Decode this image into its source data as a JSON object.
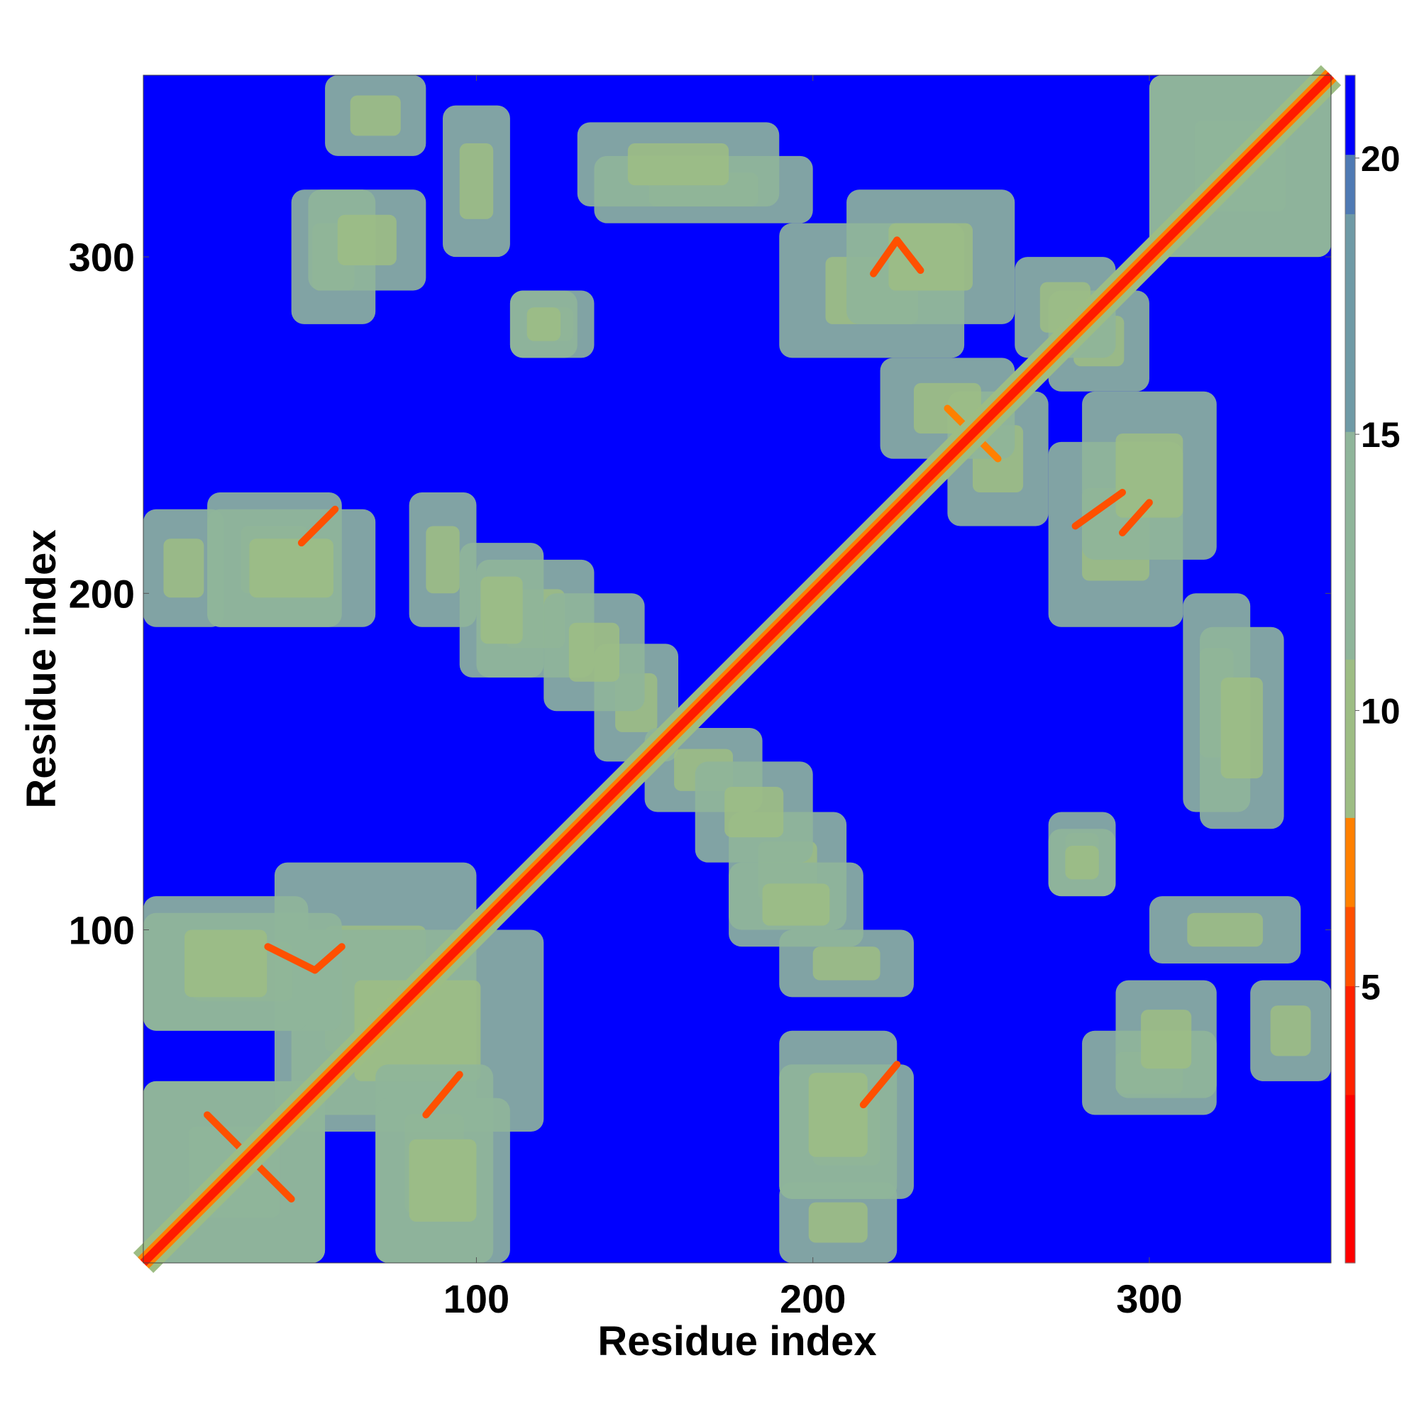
{
  "chart_data": {
    "type": "heatmap",
    "title": "",
    "xlabel": "Residue index",
    "ylabel": "Residue index",
    "n_residues": 354,
    "xlim": [
      1,
      354
    ],
    "ylim": [
      1,
      354
    ],
    "x_ticks": [
      100,
      200,
      300
    ],
    "y_ticks": [
      100,
      200,
      300
    ],
    "colorbar": {
      "range": [
        0,
        21.5
      ],
      "ticks": [
        5,
        10,
        15,
        20
      ],
      "saturate_above": 20,
      "colors": [
        {
          "value": 0,
          "color": "#ff0000"
        },
        {
          "value": 3,
          "color": "#ff2200"
        },
        {
          "value": 5,
          "color": "#ff5000"
        },
        {
          "value": 6.5,
          "color": "#ff8000"
        },
        {
          "value": 8,
          "color": "#ffaa00"
        },
        {
          "value": 8.01,
          "color": "#9dbd84"
        },
        {
          "value": 11,
          "color": "#8fb59a"
        },
        {
          "value": 15,
          "color": "#6f9aa6"
        },
        {
          "value": 19,
          "color": "#4f7ab4"
        },
        {
          "value": 20,
          "color": "#3f63c0"
        },
        {
          "value": 20.01,
          "color": "#0000ff"
        }
      ]
    },
    "background_color": "#0000ff",
    "diagonal": {
      "from": [
        1,
        1
      ],
      "to": [
        354,
        354
      ],
      "color": "#ff1a00"
    },
    "contact_regions": [
      {
        "x": [
          1,
          55
        ],
        "y": [
          1,
          55
        ],
        "level": 14
      },
      {
        "x": [
          40,
          100
        ],
        "y": [
          45,
          120
        ],
        "level": 13
      },
      {
        "x": [
          1,
          60
        ],
        "y": [
          70,
          105
        ],
        "level": 13
      },
      {
        "x": [
          70,
          110
        ],
        "y": [
          1,
          50
        ],
        "level": 13
      },
      {
        "x": [
          1,
          25
        ],
        "y": [
          190,
          225
        ],
        "level": 13
      },
      {
        "x": [
          20,
          60
        ],
        "y": [
          190,
          230
        ],
        "level": 13
      },
      {
        "x": [
          80,
          100
        ],
        "y": [
          190,
          230
        ],
        "level": 12
      },
      {
        "x": [
          100,
          135
        ],
        "y": [
          175,
          210
        ],
        "level": 12
      },
      {
        "x": [
          135,
          160
        ],
        "y": [
          150,
          185
        ],
        "level": 13
      },
      {
        "x": [
          165,
          200
        ],
        "y": [
          120,
          150
        ],
        "level": 13
      },
      {
        "x": [
          175,
          215
        ],
        "y": [
          95,
          120
        ],
        "level": 12
      },
      {
        "x": [
          190,
          225
        ],
        "y": [
          20,
          70
        ],
        "level": 13
      },
      {
        "x": [
          190,
          245
        ],
        "y": [
          270,
          310
        ],
        "level": 13
      },
      {
        "x": [
          135,
          200
        ],
        "y": [
          310,
          330
        ],
        "level": 13
      },
      {
        "x": [
          90,
          110
        ],
        "y": [
          300,
          345
        ],
        "level": 12
      },
      {
        "x": [
          45,
          70
        ],
        "y": [
          280,
          320
        ],
        "level": 12
      },
      {
        "x": [
          110,
          135
        ],
        "y": [
          270,
          290
        ],
        "level": 12
      },
      {
        "x": [
          280,
          320
        ],
        "y": [
          210,
          260
        ],
        "level": 13
      },
      {
        "x": [
          315,
          340
        ],
        "y": [
          130,
          190
        ],
        "level": 13
      },
      {
        "x": [
          290,
          320
        ],
        "y": [
          50,
          85
        ],
        "level": 12
      },
      {
        "x": [
          330,
          354
        ],
        "y": [
          55,
          85
        ],
        "level": 12
      },
      {
        "x": [
          300,
          354
        ],
        "y": [
          300,
          354
        ],
        "level": 14
      },
      {
        "x": [
          270,
          300
        ],
        "y": [
          260,
          290
        ],
        "level": 13
      },
      {
        "x": [
          240,
          270
        ],
        "y": [
          220,
          260
        ],
        "level": 13
      },
      {
        "x": [
          270,
          290
        ],
        "y": [
          110,
          130
        ],
        "level": 12
      }
    ],
    "contact_lines": [
      {
        "from": [
          20,
          45
        ],
        "to": [
          45,
          20
        ],
        "level": 5
      },
      {
        "from": [
          38,
          95
        ],
        "to": [
          52,
          88
        ],
        "level": 6
      },
      {
        "from": [
          52,
          88
        ],
        "to": [
          60,
          95
        ],
        "level": 6
      },
      {
        "from": [
          85,
          45
        ],
        "to": [
          95,
          57
        ],
        "level": 6
      },
      {
        "from": [
          48,
          215
        ],
        "to": [
          58,
          225
        ],
        "level": 6
      },
      {
        "from": [
          218,
          295
        ],
        "to": [
          225,
          305
        ],
        "level": 6
      },
      {
        "from": [
          225,
          305
        ],
        "to": [
          232,
          296
        ],
        "level": 6
      },
      {
        "from": [
          278,
          220
        ],
        "to": [
          292,
          230
        ],
        "level": 6
      },
      {
        "from": [
          292,
          218
        ],
        "to": [
          300,
          227
        ],
        "level": 6
      },
      {
        "from": [
          215,
          48
        ],
        "to": [
          225,
          60
        ],
        "level": 6
      },
      {
        "from": [
          240,
          255
        ],
        "to": [
          255,
          240
        ],
        "level": 7
      }
    ]
  }
}
